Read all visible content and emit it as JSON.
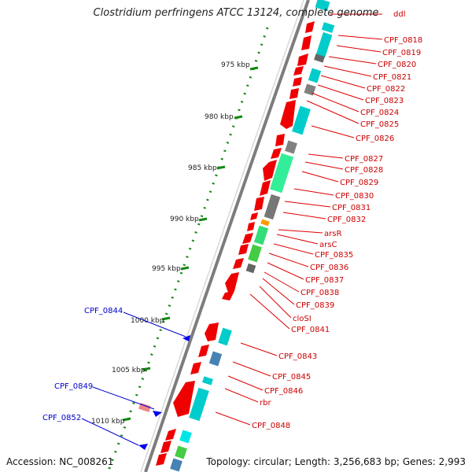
{
  "title": "Clostridium perfringens ATCC 13124, complete genome",
  "footer": {
    "accession": "Accession: NC_008261",
    "topology": "Topology: circular; Length: 3,256,683 bp; Genes: 2,993"
  },
  "kbp_ticks": [
    "975 kbp",
    "980 kbp",
    "985 kbp",
    "990 kbp",
    "995 kbp",
    "1000 kbp",
    "1005 kbp",
    "1010 kbp"
  ],
  "right_labels": [
    "ddl",
    "CPF_0818",
    "CPF_0819",
    "CPF_0820",
    "CPF_0821",
    "CPF_0822",
    "CPF_0823",
    "CPF_0824",
    "CPF_0825",
    "CPF_0826",
    "CPF_0827",
    "CPF_0828",
    "CPF_0829",
    "CPF_0830",
    "CPF_0831",
    "CPF_0832",
    "arsR",
    "arsC",
    "CPF_0835",
    "CPF_0836",
    "CPF_0837",
    "CPF_0838",
    "CPF_0839",
    "cloSI",
    "CPF_0841",
    "CPF_0843",
    "CPF_0845",
    "CPF_0846",
    "rbr",
    "CPF_0848"
  ],
  "left_labels": [
    "CPF_0844",
    "CPF_0849",
    "CPF_0852"
  ],
  "colors": {
    "forward_cds": "#ff0000",
    "reverse_cds": "#00cccc",
    "gray_feature": "#808080",
    "green_feature": "#33ee88",
    "steelblue_feature": "#4682b4",
    "blue_label": "#0000cc",
    "red_label": "#cc0000",
    "tick_green": "#118811"
  }
}
